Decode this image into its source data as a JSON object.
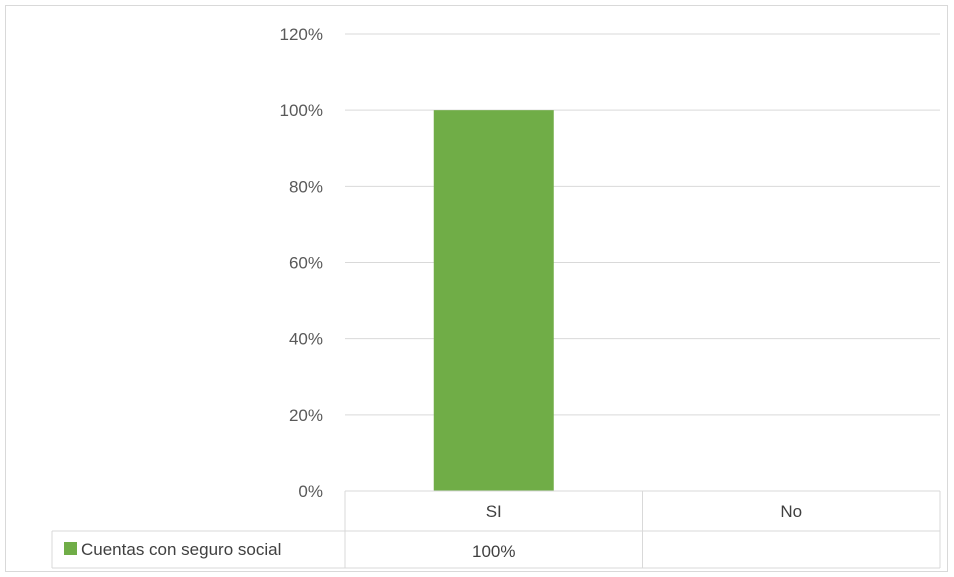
{
  "chart_data": {
    "type": "bar",
    "categories": [
      "SI",
      "No"
    ],
    "series": [
      {
        "name": "Cuentas con seguro social",
        "values": [
          100,
          null
        ],
        "color": "#70ad47"
      }
    ],
    "data_table": {
      "row_label": "Cuentas con seguro social",
      "cells": [
        "100%",
        ""
      ]
    },
    "y_ticks": [
      "0%",
      "20%",
      "40%",
      "60%",
      "80%",
      "100%",
      "120%"
    ],
    "ylim": [
      0,
      120
    ],
    "grid": true
  }
}
